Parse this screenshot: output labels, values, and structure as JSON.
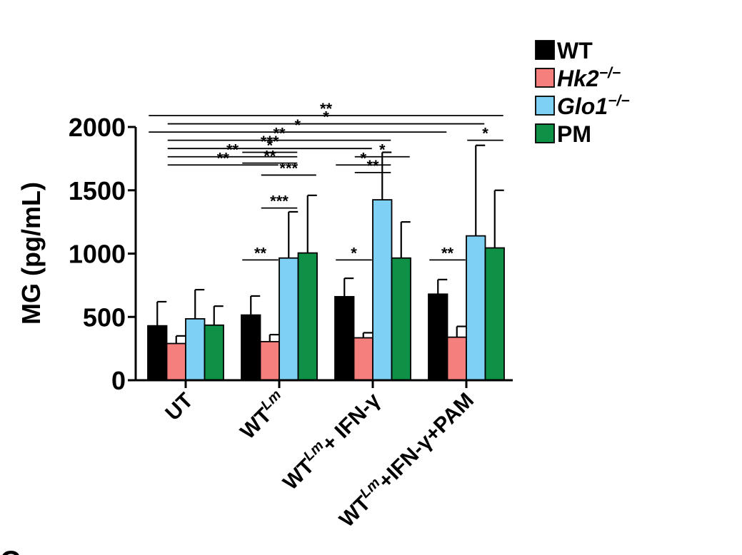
{
  "chart_data": {
    "type": "bar",
    "ylabel": "MG (pg/mL)",
    "ylim": [
      0,
      2000
    ],
    "yticks": [
      "0",
      "500",
      "1000",
      "1500",
      "2000"
    ],
    "categories": [
      {
        "base": "UT",
        "sup": "",
        "rest": ""
      },
      {
        "base": "WT",
        "sup": "Lm",
        "rest": ""
      },
      {
        "base": "WT",
        "sup": "Lm",
        "rest": "+ IFN-γ"
      },
      {
        "base": "WT",
        "sup": "Lm",
        "rest": "+IFN-γ+PAM"
      }
    ],
    "series": [
      {
        "name": "WT",
        "sup": "",
        "italic": false,
        "color": "#000000",
        "values": [
          430,
          515,
          660,
          680
        ],
        "errors": [
          190,
          150,
          145,
          115
        ]
      },
      {
        "name": "Hk2",
        "sup": "−/−",
        "italic": true,
        "color": "#f47f7c",
        "values": [
          290,
          305,
          335,
          340
        ],
        "errors": [
          60,
          55,
          40,
          85
        ]
      },
      {
        "name": "Glo1",
        "sup": "−/−",
        "italic": true,
        "color": "#7fd0f5",
        "values": [
          485,
          965,
          1425,
          1140
        ],
        "errors": [
          230,
          365,
          375,
          715
        ]
      },
      {
        "name": "PM",
        "sup": "",
        "italic": false,
        "color": "#0e9147",
        "values": [
          435,
          1005,
          965,
          1045
        ],
        "errors": [
          150,
          455,
          285,
          455
        ]
      }
    ],
    "significance": [
      {
        "label": "**",
        "from": {
          "group": 0,
          "bar": 0
        },
        "to": {
          "group": 3,
          "bar": 3
        },
        "level": 2090
      },
      {
        "label": "*",
        "from": {
          "group": 0,
          "bar": 1
        },
        "to": {
          "group": 3,
          "bar": 2
        },
        "level": 2025
      },
      {
        "label": "*",
        "from": {
          "group": 0,
          "bar": 0
        },
        "to": {
          "group": 3,
          "bar": 0
        },
        "level": 1960
      },
      {
        "label": "**",
        "from": {
          "group": 0,
          "bar": 1
        },
        "to": {
          "group": 2,
          "bar": 2
        },
        "level": 1895
      },
      {
        "label": "***",
        "from": {
          "group": 0,
          "bar": 1
        },
        "to": {
          "group": 2,
          "bar": 1
        },
        "level": 1830
      },
      {
        "label": "**",
        "from": {
          "group": 0,
          "bar": 1
        },
        "to": {
          "group": 1,
          "bar": 2
        },
        "level": 1765
      },
      {
        "label": "**",
        "from": {
          "group": 0,
          "bar": 1
        },
        "to": {
          "group": 1,
          "bar": 1
        },
        "level": 1700
      },
      {
        "label": "*",
        "from": {
          "group": 2,
          "bar": 1
        },
        "to": {
          "group": 2,
          "bar": 3
        },
        "level": 1765
      },
      {
        "label": "*",
        "from": {
          "group": 2,
          "bar": 0
        },
        "to": {
          "group": 2,
          "bar": 2
        },
        "level": 1700
      },
      {
        "label": "**",
        "from": {
          "group": 2,
          "bar": 1
        },
        "to": {
          "group": 2,
          "bar": 2
        },
        "level": 1640
      },
      {
        "label": "*",
        "from": {
          "group": 3,
          "bar": 2
        },
        "to": {
          "group": 3,
          "bar": 3
        },
        "level": 1895
      },
      {
        "label": "*",
        "from": {
          "group": 1,
          "bar": 0
        },
        "to": {
          "group": 1,
          "bar": 2
        },
        "level": 1800
      },
      {
        "label": "**",
        "from": {
          "group": 1,
          "bar": 0
        },
        "to": {
          "group": 1,
          "bar": 2
        },
        "level": 1715
      },
      {
        "label": "***",
        "from": {
          "group": 1,
          "bar": 1
        },
        "to": {
          "group": 1,
          "bar": 3
        },
        "level": 1620
      },
      {
        "label": "***",
        "from": {
          "group": 1,
          "bar": 1
        },
        "to": {
          "group": 1,
          "bar": 2
        },
        "level": 1360
      },
      {
        "label": "**",
        "from": {
          "group": 1,
          "bar": 0
        },
        "to": {
          "group": 1,
          "bar": 1
        },
        "level": 950
      },
      {
        "label": "*",
        "from": {
          "group": 2,
          "bar": 0
        },
        "to": {
          "group": 2,
          "bar": 1
        },
        "level": 950
      },
      {
        "label": "**",
        "from": {
          "group": 3,
          "bar": 0
        },
        "to": {
          "group": 3,
          "bar": 1
        },
        "level": 950
      }
    ]
  },
  "panel_label": "C"
}
